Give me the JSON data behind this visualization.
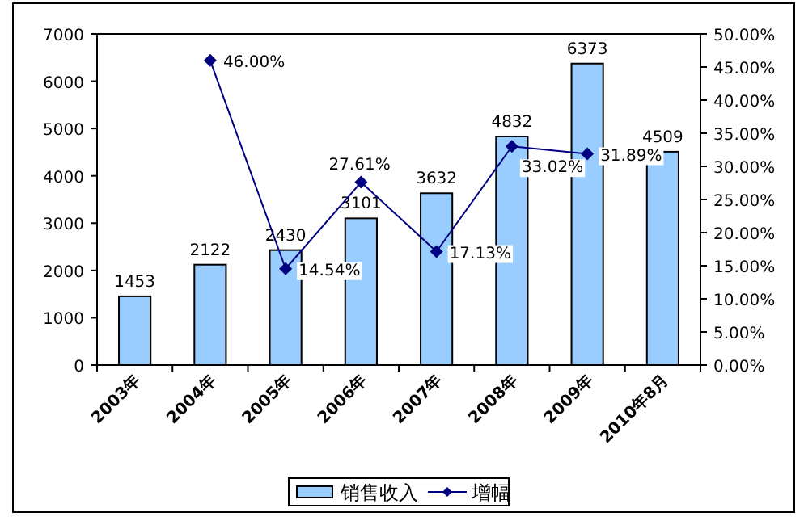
{
  "chart_data": {
    "type": "bar",
    "categories": [
      "2003年",
      "2004年",
      "2005年",
      "2006年",
      "2007年",
      "2008年",
      "2009年",
      "2010年8月"
    ],
    "series": [
      {
        "name": "销售收入",
        "color": "#99ccff",
        "values": [
          1453,
          2122,
          2430,
          3101,
          3632,
          4832,
          6373,
          4509
        ]
      },
      {
        "name": "增幅",
        "type": "line",
        "axis": "y2",
        "color": "#000080",
        "marker": "diamond",
        "values": [
          null,
          46.0,
          14.54,
          27.61,
          17.13,
          33.02,
          31.89,
          null
        ],
        "value_labels": [
          null,
          "46.00%",
          "14.54%",
          "27.61%",
          "17.13%",
          "33.02%",
          "31.89%",
          null
        ]
      }
    ],
    "data_labels": true,
    "ylim": [
      0,
      7000
    ],
    "yticks": [
      0,
      1000,
      2000,
      3000,
      4000,
      5000,
      6000,
      7000
    ],
    "y2lim": [
      0,
      50
    ],
    "y2ticks": [
      {
        "value": 0,
        "label": "0.00%"
      },
      {
        "value": 5,
        "label": "5.00%"
      },
      {
        "value": 10,
        "label": "10.00%"
      },
      {
        "value": 15,
        "label": "15.00%"
      },
      {
        "value": 20,
        "label": "20.00%"
      },
      {
        "value": 25,
        "label": "25.00%"
      },
      {
        "value": 30,
        "label": "30.00%"
      },
      {
        "value": 35,
        "label": "35.00%"
      },
      {
        "value": 40,
        "label": "40.00%"
      },
      {
        "value": 45,
        "label": "45.00%"
      },
      {
        "value": 50,
        "label": "50.00%"
      }
    ],
    "grid": false,
    "legend": "bottom"
  }
}
